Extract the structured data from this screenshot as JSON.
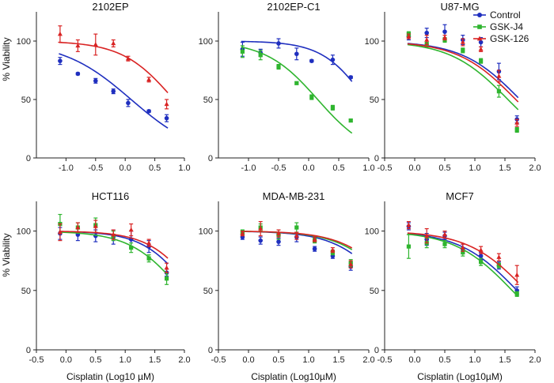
{
  "figure": {
    "ylabel": "% Viability",
    "xlabel_top_left": "",
    "xlabel": "Cisplatin (Log10 µM)",
    "xlabel_alt": "Cisplatin (Log10µM)"
  },
  "legend": [
    {
      "name": "Control",
      "color": "#1f2fbf"
    },
    {
      "name": "GSK-J4",
      "color": "#2fb52f"
    },
    {
      "name": "GSK-126",
      "color": "#d92323"
    }
  ],
  "chart_data": [
    {
      "type": "scatter",
      "title": "2102EP",
      "xlim": [
        -1.5,
        1.0
      ],
      "ylim": [
        0,
        125
      ],
      "xticks": [
        "-1.0",
        "-0.5",
        "0.0",
        "0.5",
        "1.0"
      ],
      "yticks": [
        "0",
        "50",
        "100"
      ],
      "xlabel": "",
      "ylabel": "% Viability",
      "series": [
        {
          "name": "Control",
          "x": [
            -1.1,
            -0.8,
            -0.5,
            -0.2,
            0.05,
            0.4,
            0.7
          ],
          "y": [
            83,
            72,
            66,
            57,
            47,
            40,
            34
          ],
          "err": [
            3,
            1,
            2,
            2,
            3,
            1,
            3
          ],
          "ic50": 0.1,
          "hill": 0.75,
          "top": 100
        },
        {
          "name": "GSK-126",
          "x": [
            -1.1,
            -0.8,
            -0.5,
            -0.2,
            0.05,
            0.4,
            0.7
          ],
          "y": [
            106,
            96,
            97,
            98,
            85,
            67,
            46
          ],
          "err": [
            7,
            5,
            9,
            3,
            2,
            2,
            4
          ],
          "ic50": 0.82,
          "hill": 1.0,
          "top": 100
        }
      ]
    },
    {
      "type": "scatter",
      "title": "2102EP-C1",
      "xlim": [
        -1.5,
        1.0
      ],
      "ylim": [
        0,
        125
      ],
      "xticks": [
        "-1.0",
        "-0.5",
        "0.0",
        "0.5",
        "1.0"
      ],
      "yticks": [
        "0",
        "50",
        "100"
      ],
      "xlabel": "",
      "ylabel": "",
      "series": [
        {
          "name": "Control",
          "x": [
            -1.1,
            -0.8,
            -0.5,
            -0.2,
            0.05,
            0.4,
            0.7
          ],
          "y": [
            93,
            90,
            98,
            89,
            83,
            84,
            69
          ],
          "err": [
            6,
            3,
            4,
            5,
            1,
            4,
            1
          ],
          "ic50": 0.95,
          "hill": 1.2,
          "top": 100
        },
        {
          "name": "GSK-J4",
          "x": [
            -1.1,
            -0.8,
            -0.5,
            -0.2,
            0.05,
            0.4,
            0.7
          ],
          "y": [
            91,
            88,
            78,
            64,
            52,
            43,
            32
          ],
          "err": [
            5,
            4,
            2,
            1,
            2,
            2,
            1
          ],
          "ic50": 0.15,
          "hill": 1.0,
          "top": 100
        }
      ]
    },
    {
      "type": "scatter",
      "title": "U87-MG",
      "xlim": [
        -0.5,
        2.0
      ],
      "ylim": [
        0,
        125
      ],
      "xticks": [
        "-0.5",
        "0.0",
        "0.5",
        "1.0",
        "1.5",
        "2.0"
      ],
      "yticks": [
        "0",
        "50",
        "100"
      ],
      "xlabel": "",
      "ylabel": "",
      "series": [
        {
          "name": "Control",
          "x": [
            -0.1,
            0.2,
            0.5,
            0.8,
            1.1,
            1.4,
            1.7
          ],
          "y": [
            104,
            107,
            108,
            101,
            99,
            74,
            33
          ],
          "err": [
            3,
            4,
            6,
            4,
            4,
            7,
            3
          ],
          "ic50": 1.75,
          "hill": 0.9,
          "top": 100
        },
        {
          "name": "GSK-J4",
          "x": [
            -0.1,
            0.2,
            0.5,
            0.8,
            1.1,
            1.4,
            1.7
          ],
          "y": [
            106,
            97,
            101,
            92,
            83,
            57,
            24
          ],
          "err": [
            2,
            2,
            2,
            2,
            2,
            5,
            2
          ],
          "ic50": 1.55,
          "hill": 0.9,
          "top": 100
        },
        {
          "name": "GSK-126",
          "x": [
            -0.1,
            0.2,
            0.5,
            0.8,
            1.1,
            1.4,
            1.7
          ],
          "y": [
            104,
            101,
            103,
            99,
            93,
            70,
            30
          ],
          "err": [
            2,
            4,
            2,
            3,
            2,
            5,
            3
          ],
          "ic50": 1.68,
          "hill": 0.9,
          "top": 100
        }
      ]
    },
    {
      "type": "scatter",
      "title": "HCT116",
      "xlim": [
        -0.5,
        2.0
      ],
      "ylim": [
        0,
        125
      ],
      "xticks": [
        "-0.5",
        "0.0",
        "0.5",
        "1.0",
        "1.5",
        "2.0"
      ],
      "yticks": [
        "0",
        "50",
        "100"
      ],
      "xlabel": "Cisplatin (Log10 µM)",
      "ylabel": "% Viability",
      "series": [
        {
          "name": "Control",
          "x": [
            -0.1,
            0.2,
            0.5,
            0.8,
            1.1,
            1.4,
            1.7
          ],
          "y": [
            98,
            97,
            96,
            95,
            93,
            87,
            65
          ],
          "err": [
            5,
            5,
            5,
            6,
            7,
            5,
            3
          ],
          "ic50": 2.1,
          "hill": 1.1,
          "top": 100
        },
        {
          "name": "GSK-J4",
          "x": [
            -0.1,
            0.2,
            0.5,
            0.8,
            1.1,
            1.4,
            1.7
          ],
          "y": [
            106,
            103,
            105,
            96,
            86,
            77,
            60
          ],
          "err": [
            8,
            4,
            6,
            4,
            4,
            3,
            5
          ],
          "ic50": 1.95,
          "hill": 1.0,
          "top": 100
        },
        {
          "name": "GSK-126",
          "x": [
            -0.1,
            0.2,
            0.5,
            0.8,
            1.1,
            1.4,
            1.7
          ],
          "y": [
            99,
            103,
            104,
            97,
            101,
            90,
            69
          ],
          "err": [
            7,
            4,
            5,
            4,
            5,
            3,
            4
          ],
          "ic50": 2.2,
          "hill": 1.1,
          "top": 100
        }
      ]
    },
    {
      "type": "scatter",
      "title": "MDA-MB-231",
      "xlim": [
        -0.5,
        2.0
      ],
      "ylim": [
        0,
        125
      ],
      "xticks": [
        "-0.5",
        "0.0",
        "0.5",
        "1.0",
        "1.5",
        "2.0"
      ],
      "yticks": [
        "0",
        "50",
        "100"
      ],
      "xlabel": "Cisplatin (Log10µM)",
      "ylabel": "",
      "series": [
        {
          "name": "Control",
          "x": [
            -0.1,
            0.2,
            0.5,
            0.8,
            1.1,
            1.4,
            1.7
          ],
          "y": [
            95,
            92,
            91,
            95,
            85,
            79,
            70
          ],
          "err": [
            2,
            3,
            3,
            4,
            2,
            2,
            3
          ],
          "ic50": 2.35,
          "hill": 1.0,
          "top": 100
        },
        {
          "name": "GSK-J4",
          "x": [
            -0.1,
            0.2,
            0.5,
            0.8,
            1.1,
            1.4,
            1.7
          ],
          "y": [
            99,
            103,
            97,
            103,
            92,
            82,
            73
          ],
          "err": [
            2,
            3,
            4,
            4,
            2,
            2,
            3
          ],
          "ic50": 2.45,
          "hill": 1.0,
          "top": 100
        },
        {
          "name": "GSK-126",
          "x": [
            -0.1,
            0.2,
            0.5,
            0.8,
            1.1,
            1.4,
            1.7
          ],
          "y": [
            98,
            102,
            98,
            96,
            93,
            84,
            72
          ],
          "err": [
            2,
            6,
            3,
            3,
            2,
            2,
            3
          ],
          "ic50": 2.5,
          "hill": 1.0,
          "top": 100
        }
      ]
    },
    {
      "type": "scatter",
      "title": "MCF7",
      "xlim": [
        -0.5,
        2.0
      ],
      "ylim": [
        0,
        125
      ],
      "xticks": [
        "-0.5",
        "0.0",
        "0.5",
        "1.0",
        "1.5",
        "2.0"
      ],
      "yticks": [
        "0",
        "50",
        "100"
      ],
      "xlabel": "Cisplatin (Log10µM)",
      "ylabel": "",
      "series": [
        {
          "name": "Control",
          "x": [
            -0.1,
            0.2,
            0.5,
            0.8,
            1.1,
            1.4,
            1.7
          ],
          "y": [
            104,
            93,
            96,
            85,
            79,
            71,
            50
          ],
          "err": [
            3,
            5,
            3,
            4,
            3,
            3,
            3
          ],
          "ic50": 1.7,
          "hill": 0.9,
          "top": 100
        },
        {
          "name": "GSK-J4",
          "x": [
            -0.1,
            0.2,
            0.5,
            0.8,
            1.1,
            1.4,
            1.7
          ],
          "y": [
            87,
            90,
            89,
            82,
            74,
            71,
            47
          ],
          "err": [
            10,
            4,
            3,
            3,
            3,
            2,
            2
          ],
          "ic50": 1.62,
          "hill": 0.9,
          "top": 100
        },
        {
          "name": "GSK-126",
          "x": [
            -0.1,
            0.2,
            0.5,
            0.8,
            1.1,
            1.4,
            1.7
          ],
          "y": [
            105,
            96,
            97,
            86,
            84,
            78,
            63
          ],
          "err": [
            3,
            6,
            3,
            3,
            3,
            3,
            8
          ],
          "ic50": 1.85,
          "hill": 0.9,
          "top": 100
        }
      ]
    }
  ]
}
